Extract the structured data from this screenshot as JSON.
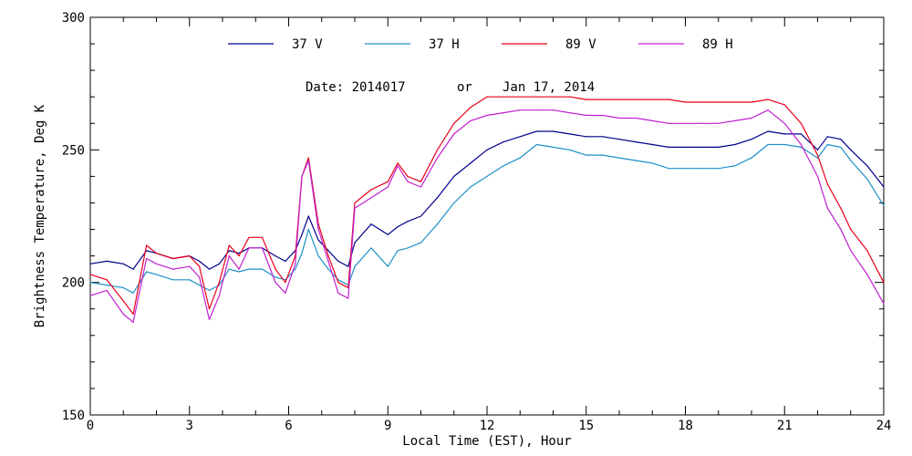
{
  "chart_data": {
    "type": "line",
    "title": "",
    "annotation": {
      "date_label": "Date: 2014017",
      "or_label": "or",
      "date_text": "Jan 17, 2014"
    },
    "xlabel": "Local Time (EST), Hour",
    "ylabel": "Brightness Temperature, Deg K",
    "xlim": [
      0,
      24
    ],
    "ylim": [
      150,
      300
    ],
    "xticks": [
      0,
      3,
      6,
      9,
      12,
      15,
      18,
      21,
      24
    ],
    "yticks": [
      150,
      200,
      250,
      300
    ],
    "grid": false,
    "legend_position": "top",
    "series": [
      {
        "name": "37 V",
        "color": "#00008b",
        "x": [
          0,
          0.5,
          1,
          1.3,
          1.7,
          2,
          2.5,
          3,
          3.3,
          3.6,
          3.9,
          4.2,
          4.5,
          4.8,
          5.2,
          5.6,
          5.9,
          6.2,
          6.4,
          6.6,
          6.9,
          7.2,
          7.5,
          7.8,
          8.0,
          8.5,
          9.0,
          9.3,
          9.6,
          10.0,
          10.5,
          11.0,
          11.5,
          12.0,
          12.5,
          13.0,
          13.5,
          14.0,
          14.5,
          15.0,
          15.5,
          16.0,
          16.5,
          17.0,
          17.5,
          18.0,
          18.5,
          19.0,
          19.5,
          20.0,
          20.5,
          21.0,
          21.5,
          22.0,
          22.3,
          22.7,
          23.0,
          23.5,
          24.0
        ],
        "values": [
          207,
          208,
          207,
          205,
          212,
          211,
          209,
          210,
          208,
          205,
          207,
          212,
          211,
          213,
          213,
          210,
          208,
          212,
          218,
          225,
          216,
          212,
          208,
          206,
          215,
          222,
          218,
          221,
          223,
          225,
          232,
          240,
          245,
          250,
          253,
          255,
          257,
          257,
          256,
          255,
          255,
          254,
          253,
          252,
          251,
          251,
          251,
          251,
          252,
          254,
          257,
          256,
          256,
          250,
          255,
          254,
          250,
          244,
          236
        ]
      },
      {
        "name": "37 H",
        "color": "#1e90c8",
        "x": [
          0,
          0.5,
          1,
          1.3,
          1.7,
          2,
          2.5,
          3,
          3.3,
          3.6,
          3.9,
          4.2,
          4.5,
          4.8,
          5.2,
          5.6,
          5.9,
          6.2,
          6.4,
          6.6,
          6.9,
          7.2,
          7.5,
          7.8,
          8.0,
          8.5,
          9.0,
          9.3,
          9.6,
          10.0,
          10.5,
          11.0,
          11.5,
          12.0,
          12.5,
          13.0,
          13.5,
          14.0,
          14.5,
          15.0,
          15.5,
          16.0,
          16.5,
          17.0,
          17.5,
          18.0,
          18.5,
          19.0,
          19.5,
          20.0,
          20.5,
          21.0,
          21.5,
          22.0,
          22.3,
          22.7,
          23.0,
          23.5,
          24.0
        ],
        "values": [
          200,
          199,
          198,
          196,
          204,
          203,
          201,
          201,
          199,
          197,
          199,
          205,
          204,
          205,
          205,
          202,
          201,
          205,
          211,
          220,
          210,
          205,
          201,
          199,
          206,
          213,
          206,
          212,
          213,
          215,
          222,
          230,
          236,
          240,
          244,
          247,
          252,
          251,
          250,
          248,
          248,
          247,
          246,
          245,
          243,
          243,
          243,
          243,
          244,
          247,
          252,
          252,
          251,
          247,
          252,
          251,
          246,
          239,
          229
        ]
      },
      {
        "name": "89 V",
        "color": "#e8001c",
        "x": [
          0,
          0.5,
          1,
          1.3,
          1.7,
          2,
          2.5,
          3,
          3.3,
          3.6,
          3.9,
          4.2,
          4.5,
          4.8,
          5.2,
          5.6,
          5.9,
          6.2,
          6.4,
          6.6,
          6.9,
          7.2,
          7.5,
          7.8,
          8.0,
          8.5,
          9.0,
          9.3,
          9.6,
          10.0,
          10.5,
          11.0,
          11.5,
          12.0,
          12.5,
          13.0,
          13.5,
          14.0,
          14.5,
          15.0,
          15.5,
          16.0,
          16.5,
          17.0,
          17.5,
          18.0,
          18.5,
          19.0,
          19.5,
          20.0,
          20.5,
          21.0,
          21.5,
          22.0,
          22.3,
          22.7,
          23.0,
          23.5,
          24.0
        ],
        "values": [
          203,
          201,
          193,
          188,
          214,
          211,
          209,
          210,
          206,
          190,
          200,
          214,
          210,
          217,
          217,
          205,
          200,
          210,
          240,
          247,
          222,
          210,
          200,
          198,
          230,
          235,
          238,
          245,
          240,
          238,
          250,
          260,
          266,
          270,
          270,
          270,
          270,
          270,
          270,
          269,
          269,
          269,
          269,
          269,
          269,
          268,
          268,
          268,
          268,
          268,
          269,
          267,
          260,
          248,
          237,
          228,
          220,
          212,
          200
        ]
      },
      {
        "name": "89 H",
        "color": "#c020d0",
        "x": [
          0,
          0.5,
          1,
          1.3,
          1.7,
          2,
          2.5,
          3,
          3.3,
          3.6,
          3.9,
          4.2,
          4.5,
          4.8,
          5.2,
          5.6,
          5.9,
          6.2,
          6.4,
          6.6,
          6.9,
          7.2,
          7.5,
          7.8,
          8.0,
          8.5,
          9.0,
          9.3,
          9.6,
          10.0,
          10.5,
          11.0,
          11.5,
          12.0,
          12.5,
          13.0,
          13.5,
          14.0,
          14.5,
          15.0,
          15.5,
          16.0,
          16.5,
          17.0,
          17.5,
          18.0,
          18.5,
          19.0,
          19.5,
          20.0,
          20.5,
          21.0,
          21.5,
          22.0,
          22.3,
          22.7,
          23.0,
          23.5,
          24.0
        ],
        "values": [
          195,
          197,
          188,
          185,
          209,
          207,
          205,
          206,
          202,
          186,
          195,
          210,
          205,
          213,
          213,
          200,
          196,
          207,
          240,
          246,
          220,
          208,
          196,
          194,
          228,
          232,
          236,
          244,
          238,
          236,
          247,
          256,
          261,
          263,
          264,
          265,
          265,
          265,
          264,
          263,
          263,
          262,
          262,
          261,
          260,
          260,
          260,
          260,
          261,
          262,
          265,
          260,
          252,
          240,
          228,
          220,
          212,
          203,
          192
        ]
      }
    ]
  }
}
